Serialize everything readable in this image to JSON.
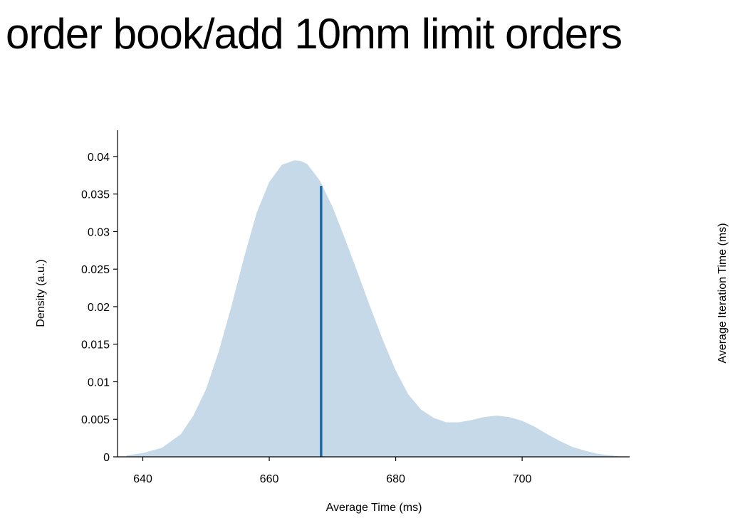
{
  "title": "order book/add 10mm limit orders",
  "chart_data": {
    "type": "area",
    "title": "order book/add 10mm limit orders",
    "xlabel": "Average Time (ms)",
    "ylabel": "Density (a.u.)",
    "y2label": "Average Iteration Time (ms)",
    "xlim": [
      636,
      717
    ],
    "ylim": [
      0,
      0.0435
    ],
    "x_ticks": [
      {
        "value": 640,
        "label": "640"
      },
      {
        "value": 660,
        "label": "660"
      },
      {
        "value": 680,
        "label": "680"
      },
      {
        "value": 700,
        "label": "700"
      }
    ],
    "y_ticks": [
      {
        "value": 0,
        "label": "0"
      },
      {
        "value": 0.005,
        "label": "0.005"
      },
      {
        "value": 0.01,
        "label": "0.01"
      },
      {
        "value": 0.015,
        "label": "0.015"
      },
      {
        "value": 0.02,
        "label": "0.02"
      },
      {
        "value": 0.025,
        "label": "0.025"
      },
      {
        "value": 0.03,
        "label": "0.03"
      },
      {
        "value": 0.035,
        "label": "0.035"
      },
      {
        "value": 0.04,
        "label": "0.04"
      }
    ],
    "grid": false,
    "colors": {
      "density_fill": "#c6d9e8",
      "mean_line": "#1f6aa5",
      "axis": "#000000"
    },
    "series": [
      {
        "x": [
          637.4,
          640,
          643,
          646,
          648,
          650,
          652,
          654,
          656,
          658,
          660,
          662,
          664,
          665,
          666,
          668,
          670,
          672,
          674,
          676,
          678,
          680,
          682,
          684,
          686,
          688,
          690,
          692,
          694,
          696,
          698,
          700,
          702,
          704,
          706,
          708,
          710,
          712,
          714,
          715.2
        ],
        "values": [
          0.0002,
          0.0005,
          0.0012,
          0.003,
          0.0055,
          0.009,
          0.014,
          0.02,
          0.0265,
          0.0325,
          0.0366,
          0.0389,
          0.0395,
          0.0394,
          0.039,
          0.0368,
          0.0333,
          0.029,
          0.0245,
          0.0199,
          0.0155,
          0.0115,
          0.0083,
          0.0063,
          0.0052,
          0.0046,
          0.0046,
          0.0049,
          0.0053,
          0.0055,
          0.0053,
          0.0048,
          0.004,
          0.003,
          0.0021,
          0.0013,
          0.0008,
          0.0004,
          0.0002,
          0.0001
        ]
      }
    ],
    "mean": {
      "x": 668.2,
      "y": 0.0361
    }
  }
}
